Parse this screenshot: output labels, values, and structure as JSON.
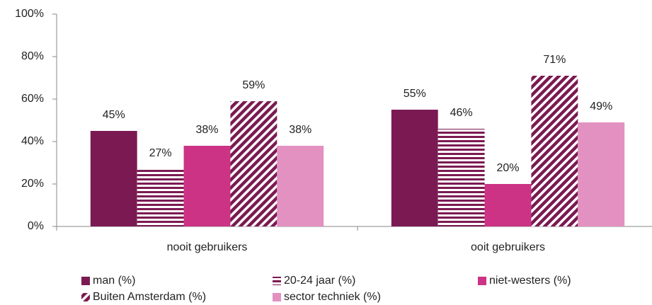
{
  "chart_data": {
    "type": "bar",
    "categories": [
      "nooit gebruikers",
      "ooit gebruikers"
    ],
    "series": [
      {
        "name": "man (%)",
        "color": "#7b1a52",
        "pattern": "solid",
        "values": [
          45,
          55
        ],
        "value_labels": [
          "45%",
          "55%"
        ]
      },
      {
        "name": "20-24 jaar (%)",
        "color": "#7b1a52",
        "pattern": "horizontal",
        "values": [
          27,
          46
        ],
        "value_labels": [
          "27%",
          "46%"
        ]
      },
      {
        "name": "niet-westers (%)",
        "color": "#cc3385",
        "pattern": "solid",
        "values": [
          38,
          20
        ],
        "value_labels": [
          "38%",
          "20%"
        ]
      },
      {
        "name": "Buiten Amsterdam (%)",
        "color": "#7b1a52",
        "pattern": "diagonal",
        "values": [
          59,
          71
        ],
        "value_labels": [
          "59%",
          "71%"
        ]
      },
      {
        "name": "sector techniek (%)",
        "color": "#e391c0",
        "pattern": "solid",
        "values": [
          38,
          49
        ],
        "value_labels": [
          "38%",
          "49%"
        ]
      }
    ],
    "ylim": [
      0,
      100
    ],
    "yticks": [
      {
        "value": 0,
        "label": "0%"
      },
      {
        "value": 20,
        "label": "20%"
      },
      {
        "value": 40,
        "label": "40%"
      },
      {
        "value": 60,
        "label": "60%"
      },
      {
        "value": 80,
        "label": "80%"
      },
      {
        "value": 100,
        "label": "100%"
      }
    ],
    "grid": false,
    "legend": "bottom"
  }
}
